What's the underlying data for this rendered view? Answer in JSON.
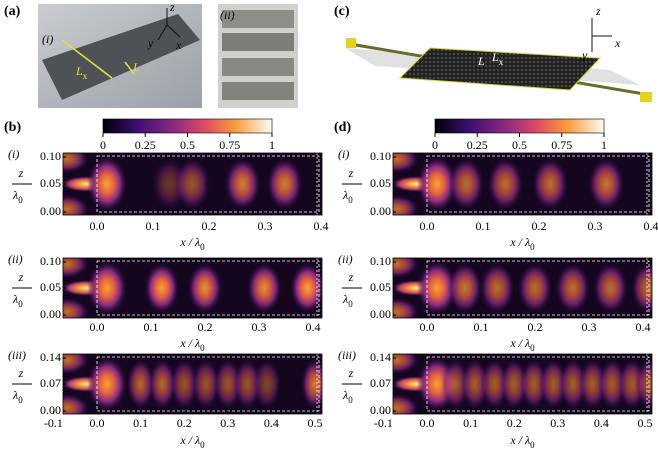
{
  "panel_a": {
    "label": "(a)",
    "photo_i": {
      "label": "(i)",
      "axes": [
        "z",
        "y",
        "x"
      ],
      "length_long": {
        "main": "L",
        "sub": "x"
      },
      "length_short": "L"
    },
    "photo_ii": {
      "label": "(ii)"
    }
  },
  "panel_c": {
    "label": "(c)",
    "axes": [
      "z",
      "y",
      "x"
    ],
    "length_short": "L",
    "length_long": {
      "main": "L",
      "sub": "x"
    }
  },
  "panel_b": {
    "label": "(b)",
    "colorbar_ticks": [
      "0",
      "0.25",
      "0.5",
      "0.75",
      "1"
    ],
    "y_label": {
      "num": "z",
      "den": "λ",
      "den_sub": "0"
    },
    "x_label": {
      "main": "x / λ",
      "sub": "0"
    },
    "rows": [
      {
        "label": "(i)",
        "y_ticks": [
          "0.10",
          "0.05",
          "0.00"
        ],
        "x_ticks": [
          "0.0",
          "0.1",
          "0.2",
          "0.3",
          "0.4"
        ]
      },
      {
        "label": "(ii)",
        "y_ticks": [
          "0.10",
          "0.05",
          "0.00"
        ],
        "x_ticks": [
          "0.0",
          "0.1",
          "0.2",
          "0.3",
          "0.4"
        ]
      },
      {
        "label": "(iii)",
        "y_ticks": [
          "0.14",
          "0.07",
          "0.00"
        ],
        "x_ticks": [
          "-0.1",
          "0.0",
          "0.1",
          "0.2",
          "0.3",
          "0.4",
          "0.5"
        ]
      }
    ]
  },
  "panel_d": {
    "label": "(d)",
    "colorbar_ticks": [
      "0",
      "0.25",
      "0.5",
      "0.75",
      "1"
    ],
    "y_label": {
      "num": "z",
      "den": "λ",
      "den_sub": "0"
    },
    "x_label": {
      "main": "x / λ",
      "sub": "0"
    },
    "rows": [
      {
        "label": "(i)",
        "y_ticks": [
          "0.10",
          "0.05",
          "0.00"
        ],
        "x_ticks": [
          "0.0",
          "0.1",
          "0.2",
          "0.3",
          "0.4"
        ]
      },
      {
        "label": "(ii)",
        "y_ticks": [
          "0.10",
          "0.05",
          "0.00"
        ],
        "x_ticks": [
          "0.0",
          "0.1",
          "0.2",
          "0.3",
          "0.4"
        ]
      },
      {
        "label": "(iii)",
        "y_ticks": [
          "0.14",
          "0.07",
          "0.00"
        ],
        "x_ticks": [
          "-0.1",
          "0.0",
          "0.1",
          "0.2",
          "0.3",
          "0.4",
          "0.5"
        ]
      }
    ]
  }
}
